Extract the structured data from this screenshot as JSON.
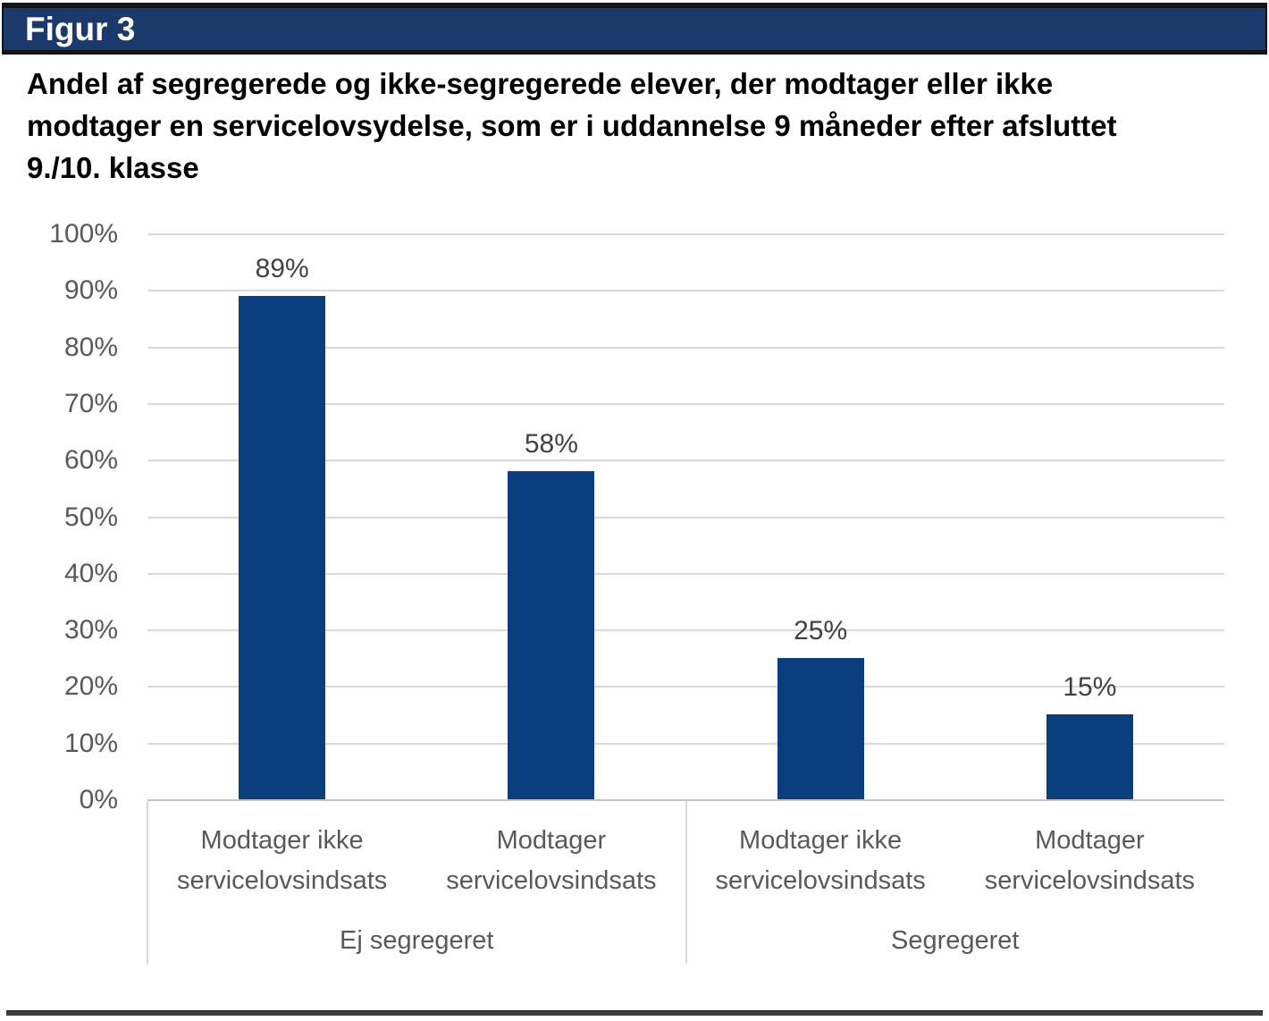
{
  "figure": {
    "label": "Figur 3",
    "title": "Andel af segregerede og ikke-segregerede elever, der modtager eller ikke modtager en servicelovsydelse, som er i uddannelse 9 måneder efter afsluttet 9./10. klasse",
    "title_lines": [
      "Andel af segregerede og ikke-segregerede elever, der modtager eller ikke",
      "modtager en servicelovsydelse, som er i uddannelse 9 måneder efter afsluttet",
      "9./10. klasse"
    ]
  },
  "chart_data": {
    "type": "bar",
    "categories": [
      "Modtager ikke servicelovsindsats",
      "Modtager servicelovsindsats",
      "Modtager ikke servicelovsindsats",
      "Modtager servicelovsindsats"
    ],
    "category_lines": [
      [
        "Modtager ikke",
        "servicelovsindsats"
      ],
      [
        "Modtager",
        "servicelovsindsats"
      ],
      [
        "Modtager ikke",
        "servicelovsindsats"
      ],
      [
        "Modtager",
        "servicelovsindsats"
      ]
    ],
    "groups": [
      {
        "label": "Ej segregeret",
        "span": [
          0,
          2
        ]
      },
      {
        "label": "Segregeret",
        "span": [
          2,
          4
        ]
      }
    ],
    "values": [
      89,
      58,
      25,
      15
    ],
    "data_labels": [
      "89%",
      "58%",
      "25%",
      "15%"
    ],
    "ylim": [
      0,
      100
    ],
    "ytick_step": 10,
    "ytick_labels": [
      "0%",
      "10%",
      "20%",
      "30%",
      "40%",
      "50%",
      "60%",
      "70%",
      "80%",
      "90%",
      "100%"
    ],
    "grid": true,
    "legend": false,
    "xlabel": "",
    "ylabel": "",
    "bar_color": "#0b3e7c"
  },
  "colors": {
    "banner_bg": "#1b396b",
    "banner_text": "#ffffff",
    "bar": "#0b3e7c",
    "gridline": "#d9d9d9",
    "axis_text": "#595959",
    "data_label_text": "#424242",
    "bottom_rule": "#3d3d3d"
  }
}
